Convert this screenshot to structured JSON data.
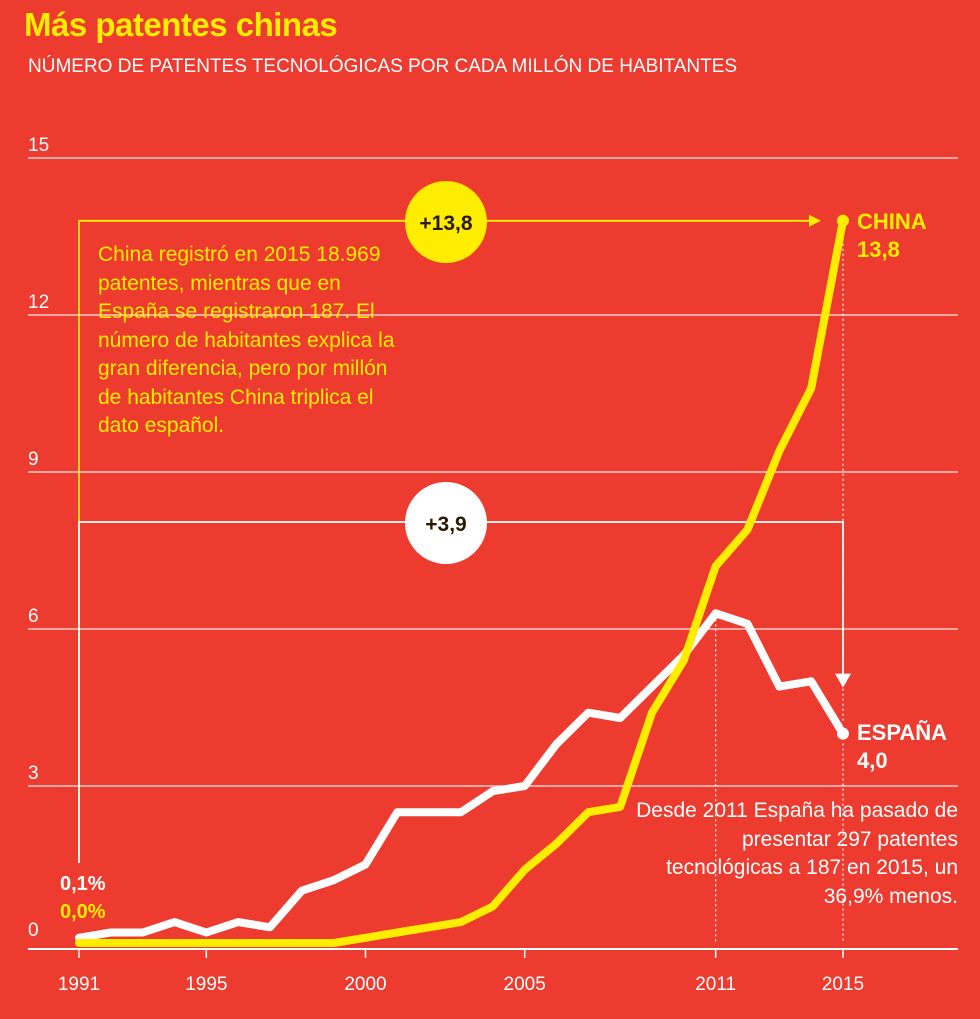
{
  "header": {
    "title": "Más patentes chinas",
    "subtitle": "NÚMERO DE PATENTES TECNOLÓGICAS POR CADA MILLÓN DE HABITANTES"
  },
  "notes": {
    "china": "China registró en 2015 18.969 patentes, mientras que en España se registraron 187. El número de habitantes explica la gran diferencia, pero por millón de habitantes China triplica el dato español.",
    "spain": "Desde 2011 España ha pasado de presentar 297 patentes tecnológicas a 187 en 2015, un 36,9% menos."
  },
  "colors": {
    "background": "#ee3b2f",
    "china": "#ffed00",
    "spain": "#ffffff"
  },
  "chart_data": {
    "type": "line",
    "title": "Más patentes chinas",
    "ylabel": "NÚMERO DE PATENTES TECNOLÓGICAS POR CADA MILLÓN DE HABITANTES",
    "xlabel": "",
    "x": [
      1991,
      1992,
      1993,
      1994,
      1995,
      1996,
      1997,
      1998,
      1999,
      2000,
      2001,
      2002,
      2003,
      2004,
      2005,
      2006,
      2007,
      2008,
      2009,
      2010,
      2011,
      2012,
      2013,
      2014,
      2015
    ],
    "x_ticks": [
      "1991",
      "1995",
      "2000",
      "2005",
      "2011",
      "2015"
    ],
    "ylim": [
      0,
      15
    ],
    "y_ticks": [
      "0",
      "3",
      "6",
      "9",
      "12",
      "15"
    ],
    "grid": true,
    "series": [
      {
        "name": "ESPAÑA",
        "color": "#ffffff",
        "values": [
          0.1,
          0.2,
          0.2,
          0.4,
          0.2,
          0.4,
          0.3,
          1.0,
          1.2,
          1.5,
          2.5,
          2.5,
          2.5,
          2.9,
          3.0,
          3.8,
          4.4,
          4.3,
          4.9,
          5.5,
          6.3,
          6.1,
          4.9,
          5.0,
          4.0
        ],
        "end_label": "ESPAÑA",
        "end_value": "4,0",
        "start_value": "0,1%"
      },
      {
        "name": "CHINA",
        "color": "#ffed00",
        "values": [
          0,
          0,
          0,
          0,
          0,
          0,
          0,
          0,
          0,
          0.1,
          0.2,
          0.3,
          0.4,
          0.7,
          1.4,
          1.9,
          2.5,
          2.6,
          4.4,
          5.4,
          7.2,
          7.9,
          9.4,
          10.6,
          13.8
        ],
        "end_label": "CHINA",
        "end_value": "13,8",
        "start_value": "0,0%"
      }
    ],
    "annotations": {
      "china_diff": "+13,8",
      "spain_diff": "+3,9"
    }
  }
}
